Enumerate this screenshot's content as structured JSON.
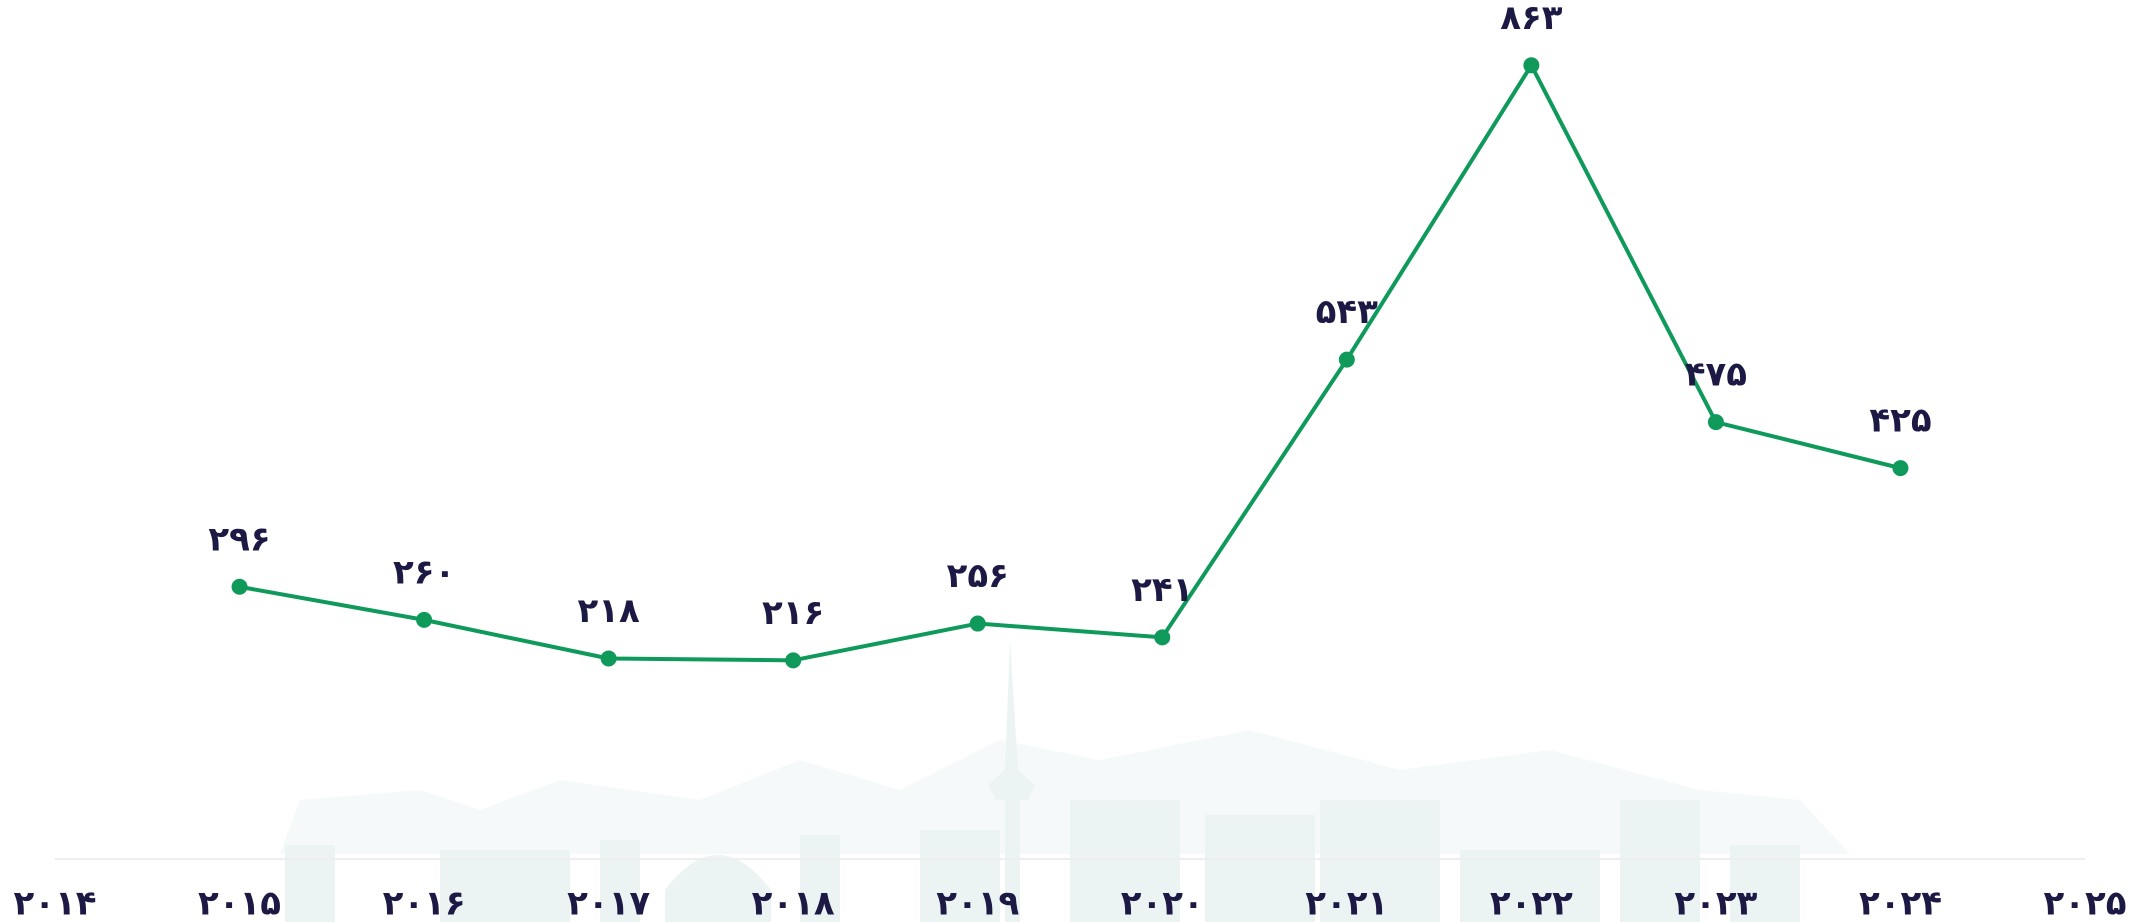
{
  "chart_data": {
    "type": "line",
    "categories": [
      "۲۰۱۴",
      "۲۰۱۵",
      "۲۰۱۶",
      "۲۰۱۷",
      "۲۰۱۸",
      "۲۰۱۹",
      "۲۰۲۰",
      "۲۰۲۱",
      "۲۰۲۲",
      "۲۰۲۳",
      "۲۰۲۴",
      "۲۰۲۵"
    ],
    "values": [
      null,
      296,
      260,
      218,
      216,
      256,
      241,
      543,
      863,
      475,
      425,
      null
    ],
    "value_labels": [
      null,
      "۲۹۶",
      "۲۶۰",
      "۲۱۸",
      "۲۱۶",
      "۲۵۶",
      "۲۴۱",
      "۵۴۳",
      "۸۶۳",
      "۴۷۵",
      "۴۲۵",
      null
    ],
    "color": "#0f9a5c",
    "ylim": [
      0,
      934
    ]
  }
}
